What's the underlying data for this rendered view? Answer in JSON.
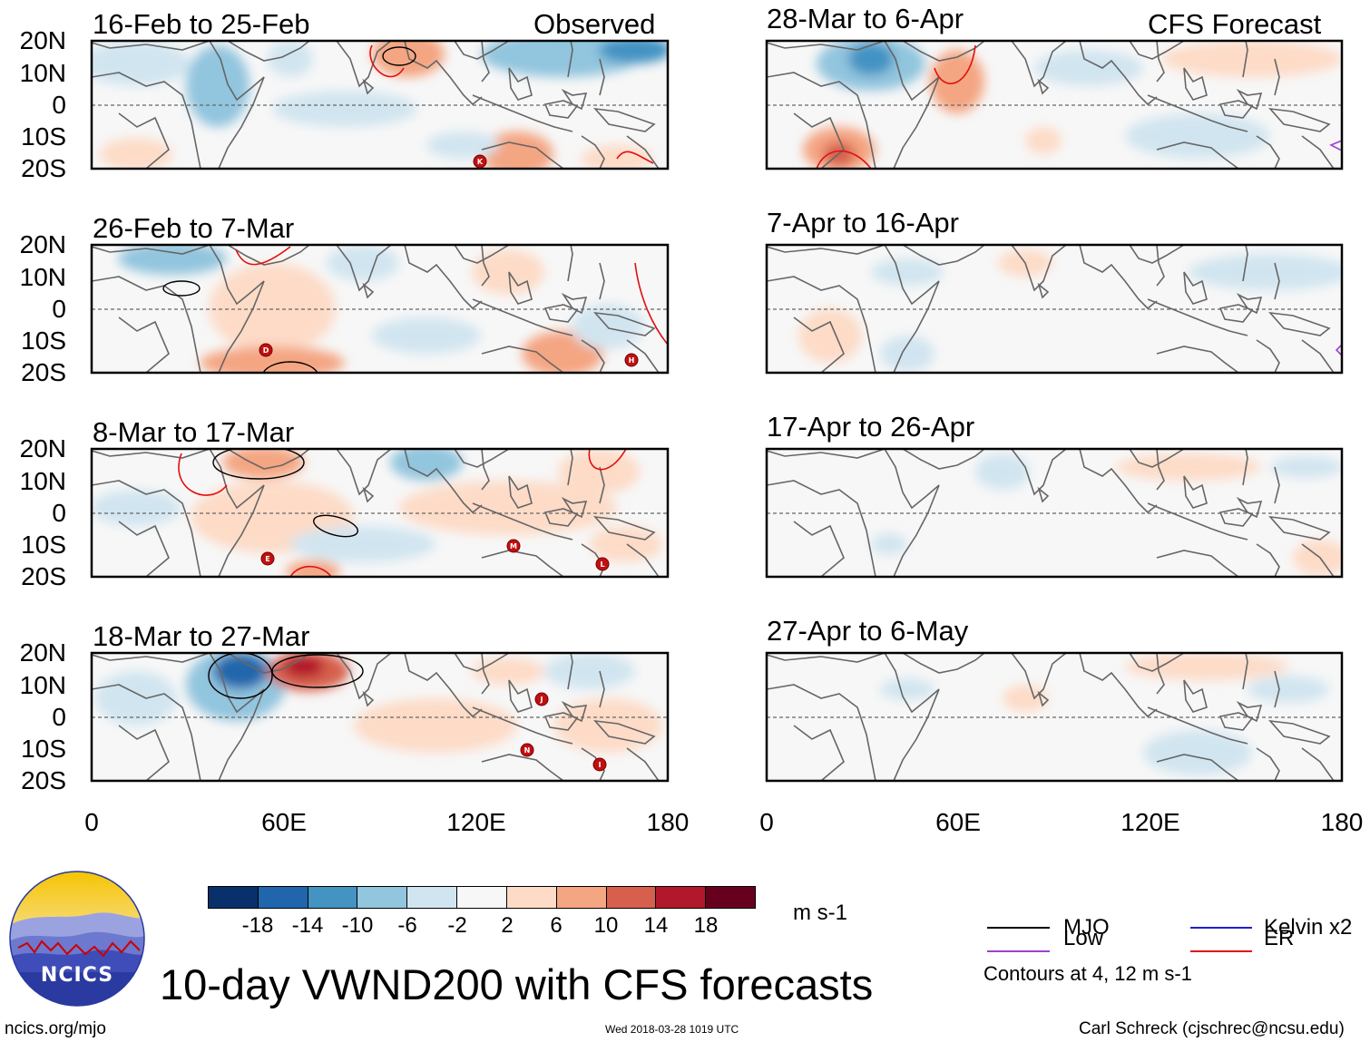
{
  "figure": {
    "title": "10-day VWND200 with CFS forecasts",
    "observed_label": "Observed",
    "forecast_label": "CFS Forecast",
    "site": "ncics.org/mjo",
    "timestamp": "Wed 2018-03-28 1019 UTC",
    "author": "Carl Schreck (cjschrec@ncsu.edu)",
    "logo_text": "NCICS"
  },
  "panels": {
    "left": [
      {
        "period": "16-Feb to 25-Feb"
      },
      {
        "period": "26-Feb to 7-Mar"
      },
      {
        "period": "8-Mar to 17-Mar"
      },
      {
        "period": "18-Mar to 27-Mar"
      }
    ],
    "right": [
      {
        "period": "28-Mar to 6-Apr"
      },
      {
        "period": "7-Apr to 16-Apr"
      },
      {
        "period": "17-Apr to 26-Apr"
      },
      {
        "period": "27-Apr to 6-May"
      }
    ]
  },
  "axes": {
    "lat_labels": [
      "20N",
      "10N",
      "0",
      "10S",
      "20S"
    ],
    "lon_labels": [
      "0",
      "60E",
      "120E",
      "180"
    ]
  },
  "colorbar": {
    "unit": "m s-1",
    "ticks": [
      "-18",
      "-14",
      "-10",
      "-6",
      "-2",
      "2",
      "6",
      "10",
      "14",
      "18"
    ],
    "colors": [
      "#08306b",
      "#2166ac",
      "#4393c3",
      "#92c5de",
      "#d1e5f0",
      "#f7f7f7",
      "#fddbc7",
      "#f4a582",
      "#d6604d",
      "#b2182b",
      "#67001f"
    ]
  },
  "legend": {
    "items": [
      {
        "label": "MJO",
        "color": "#000000"
      },
      {
        "label": "Kelvin x2",
        "color": "#1f1fd0"
      },
      {
        "label": "Low",
        "color": "#a040d0"
      },
      {
        "label": "ER",
        "color": "#e01010"
      }
    ],
    "note": "Contours at 4, 12 m s-1"
  },
  "storms": [
    {
      "letter": "K"
    },
    {
      "letter": "D"
    },
    {
      "letter": "H"
    },
    {
      "letter": "E"
    },
    {
      "letter": "M"
    },
    {
      "letter": "L"
    },
    {
      "letter": "J"
    },
    {
      "letter": "N"
    },
    {
      "letter": "I"
    }
  ]
}
